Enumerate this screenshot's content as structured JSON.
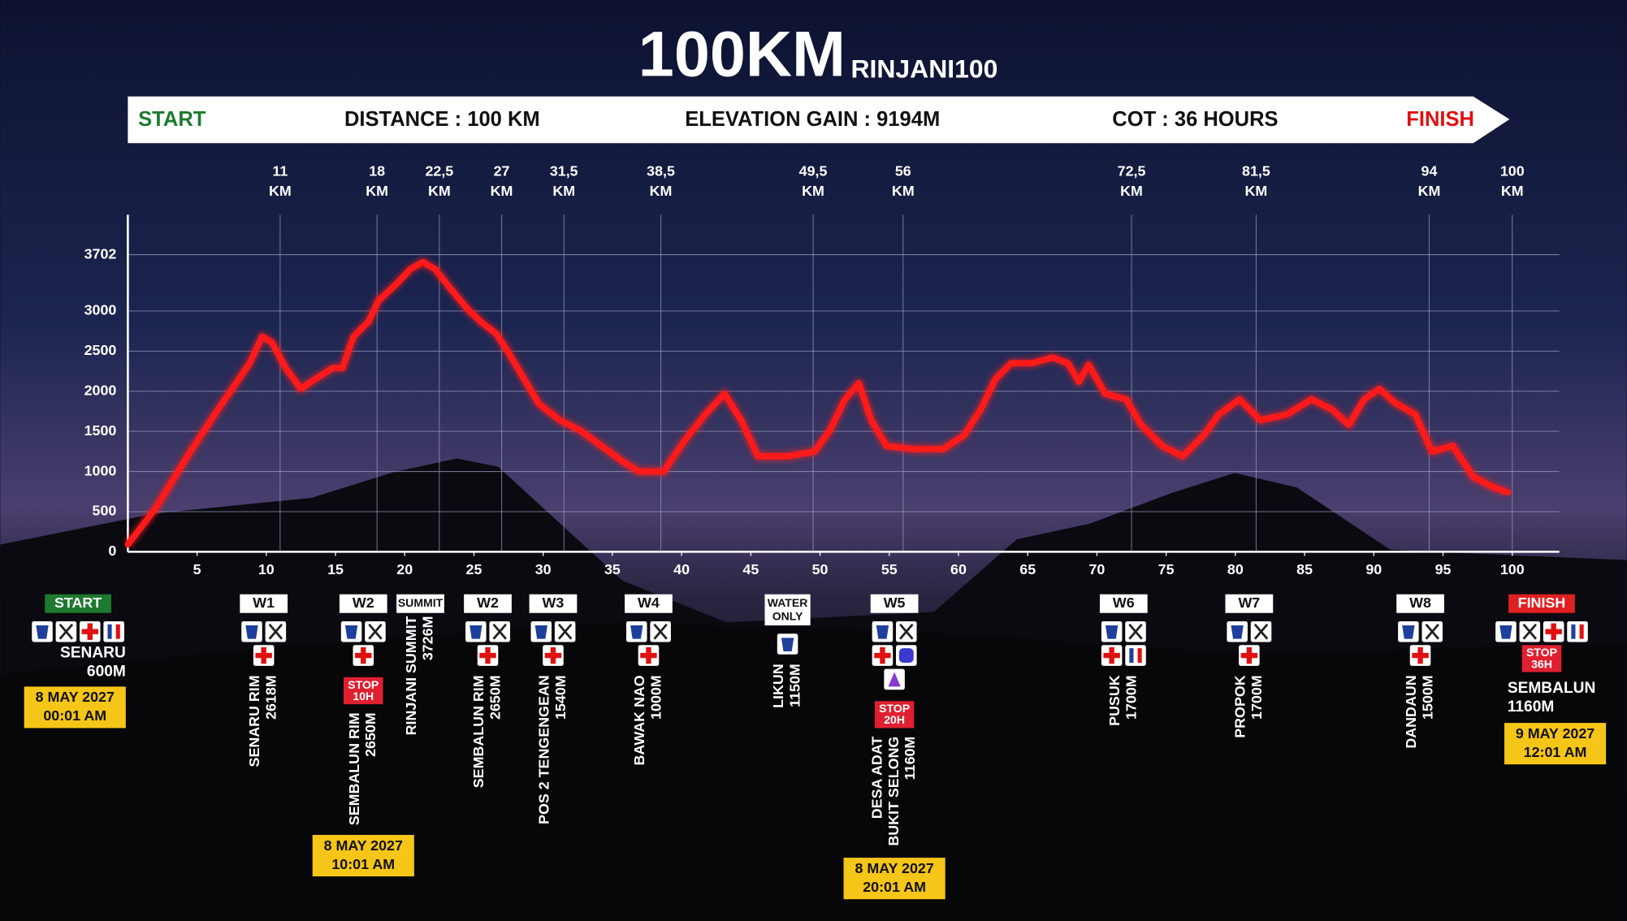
{
  "chart_data": {
    "type": "line",
    "title": "100KM",
    "subtitle": "RINJANI100",
    "banner": {
      "start": "START",
      "distance": "DISTANCE : 100 KM",
      "elevation_gain": "ELEVATION GAIN : 9194M",
      "cot": "COT : 36 HOURS",
      "finish": "FINISH"
    },
    "x": [
      0,
      2,
      4.3,
      6.5,
      8.8,
      9.7,
      10.4,
      11.4,
      12.5,
      13.6,
      14.8,
      15.5,
      16.3,
      17.4,
      18.1,
      19.3,
      20.4,
      21.3,
      22.2,
      23.4,
      24.5,
      25.6,
      26.6,
      27.5,
      28.6,
      29.7,
      31.2,
      32.7,
      34.2,
      35.7,
      36.9,
      38.7,
      40.2,
      41.7,
      43.1,
      44.3,
      45.5,
      47.7,
      49.6,
      50.7,
      51.8,
      52.8,
      53.7,
      54.8,
      56.7,
      58.9,
      60.4,
      61.6,
      62.7,
      63.8,
      65.3,
      66.8,
      67.9,
      68.7,
      69.4,
      70.6,
      72.1,
      73.2,
      74.7,
      76.2,
      77.7,
      78.8,
      80.3,
      81.8,
      83.7,
      85.5,
      87,
      88.2,
      89.3,
      90.4,
      91.5,
      93,
      94.2,
      95.7,
      97.2,
      98.7,
      99.7
    ],
    "values": [
      90,
      540,
      1190,
      1770,
      2350,
      2680,
      2610,
      2290,
      2030,
      2160,
      2290,
      2290,
      2680,
      2870,
      3130,
      3320,
      3520,
      3610,
      3520,
      3260,
      3030,
      2850,
      2720,
      2480,
      2160,
      1840,
      1640,
      1510,
      1320,
      1130,
      1000,
      1000,
      1380,
      1710,
      1970,
      1640,
      1190,
      1190,
      1250,
      1510,
      1900,
      2100,
      1640,
      1320,
      1280,
      1280,
      1450,
      1770,
      2160,
      2350,
      2350,
      2420,
      2350,
      2120,
      2330,
      1970,
      1900,
      1580,
      1320,
      1190,
      1450,
      1710,
      1900,
      1640,
      1710,
      1900,
      1770,
      1580,
      1900,
      2030,
      1860,
      1710,
      1250,
      1320,
      930,
      800,
      740
    ],
    "color": "#ff1a1a",
    "xlim": [
      0,
      103.4
    ],
    "ylim": [
      0,
      4200
    ],
    "xticks": [
      5,
      10,
      15,
      20,
      25,
      30,
      35,
      40,
      45,
      50,
      55,
      60,
      65,
      70,
      75,
      80,
      85,
      90,
      95,
      100
    ],
    "yticks": [
      0,
      500,
      1000,
      1500,
      2000,
      2500,
      3000,
      3702
    ],
    "grid": true,
    "top_unit": "KM",
    "top_ticks": [
      11,
      18,
      {
        "value": 22.5,
        "label": "22,5"
      },
      27,
      {
        "value": 31.5,
        "label": "31,5"
      },
      {
        "value": 38.5,
        "label": "38,5"
      },
      {
        "value": 49.5,
        "label": "49,5"
      },
      56,
      {
        "value": 72.5,
        "label": "72,5"
      },
      {
        "value": 81.5,
        "label": "81,5"
      },
      94,
      100
    ],
    "checkpoints": [
      {
        "badge": "START",
        "facilities": [
          [
            "water",
            "food",
            "medical",
            "toilet"
          ]
        ],
        "place": [
          "SENARU"
        ],
        "elevation": "600M",
        "date": [
          "8 MAY 2027",
          "00:01 AM"
        ]
      },
      {
        "badge": "W1",
        "facilities": [
          [
            "water",
            "food"
          ],
          [
            "medical"
          ]
        ],
        "place": [
          "SENARU RIM"
        ],
        "elevation": "2618M"
      },
      {
        "badge": "W2",
        "facilities": [
          [
            "water",
            "food"
          ],
          [
            "medical"
          ]
        ],
        "stop": [
          "STOP",
          "10H"
        ],
        "place": [
          "SEMBALUN RIM"
        ],
        "elevation": "2650M",
        "date": [
          "8 MAY 2027",
          "10:01 AM"
        ]
      },
      {
        "badge": "SUMMIT",
        "facilities": [],
        "place": [
          "RINJANI SUMMIT"
        ],
        "elevation": "3726M"
      },
      {
        "badge": "W2",
        "facilities": [
          [
            "water",
            "food"
          ],
          [
            "medical"
          ]
        ],
        "place": [
          "SEMBALUN RIM"
        ],
        "elevation": "2650M"
      },
      {
        "badge": "W3",
        "facilities": [
          [
            "water",
            "food"
          ],
          [
            "medical"
          ]
        ],
        "place": [
          "POS 2 TENGENGEAN"
        ],
        "elevation": "1540M"
      },
      {
        "badge": "W4",
        "facilities": [
          [
            "water",
            "food"
          ],
          [
            "medical"
          ]
        ],
        "place": [
          "BAWAK NAO"
        ],
        "elevation": "1000M"
      },
      {
        "badge": [
          "WATER",
          "ONLY"
        ],
        "facilities": [
          [
            "water"
          ]
        ],
        "place": [
          "LIKUN"
        ],
        "elevation": "1150M"
      },
      {
        "badge": "W5",
        "facilities": [
          [
            "water",
            "food"
          ],
          [
            "medical",
            "shuttle"
          ],
          [
            "dropbag"
          ]
        ],
        "stop": [
          "STOP",
          "20H"
        ],
        "place": [
          "DESA ADAT",
          "BUKIT SELONG"
        ],
        "elevation": "1160M",
        "date": [
          "8 MAY 2027",
          "20:01 AM"
        ]
      },
      {
        "badge": "W6",
        "facilities": [
          [
            "water",
            "food"
          ],
          [
            "medical",
            "toilet"
          ]
        ],
        "place": [
          "PUSUK"
        ],
        "elevation": "1700M"
      },
      {
        "badge": "W7",
        "facilities": [
          [
            "water",
            "food"
          ],
          [
            "medical"
          ]
        ],
        "place": [
          "PROPOK"
        ],
        "elevation": "1700M"
      },
      {
        "badge": "W8",
        "facilities": [
          [
            "water",
            "food"
          ],
          [
            "medical"
          ]
        ],
        "place": [
          "DANDAUN"
        ],
        "elevation": "1500M"
      },
      {
        "badge": "FINISH",
        "facilities": [
          [
            "water",
            "food",
            "medical",
            "toilet"
          ]
        ],
        "stop": [
          "STOP",
          "36H"
        ],
        "place": [
          "SEMBALUN"
        ],
        "elevation": "1160M",
        "date": [
          "9 MAY 2027",
          "12:01 AM"
        ]
      }
    ]
  }
}
